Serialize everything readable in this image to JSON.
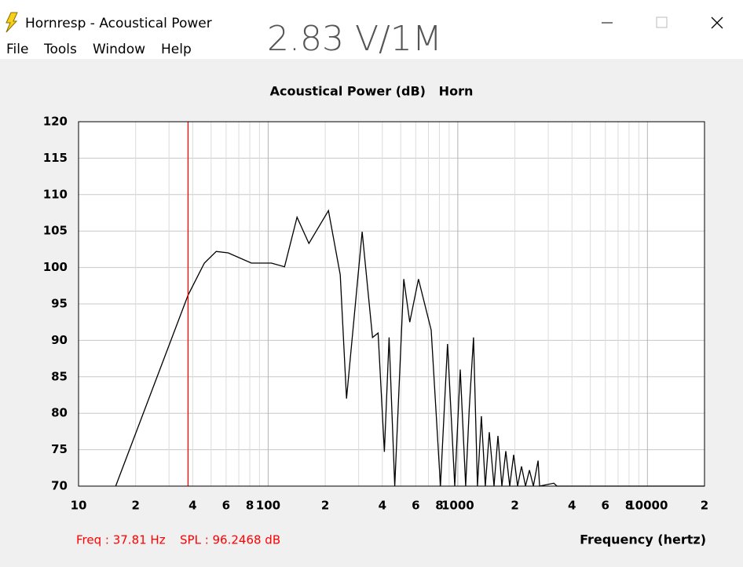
{
  "window": {
    "title": "Hornresp - Acoustical Power",
    "menu": [
      "File",
      "Tools",
      "Window",
      "Help"
    ]
  },
  "annotation": "2.83 V/1M",
  "chart_data": {
    "type": "line",
    "title": "Acoustical Power (dB)   Horn",
    "x_label": "Frequency (hertz)",
    "xscale": "log",
    "xlim": [
      10,
      20000
    ],
    "ylim": [
      70,
      120
    ],
    "xticks": [
      10,
      {
        "value": 20,
        "label": "2"
      },
      {
        "value": 40,
        "label": "4"
      },
      {
        "value": 60,
        "label": "6"
      },
      {
        "value": 80,
        "label": "8"
      },
      100,
      {
        "value": 200,
        "label": "2"
      },
      {
        "value": 400,
        "label": "4"
      },
      {
        "value": 600,
        "label": "6"
      },
      {
        "value": 800,
        "label": "8"
      },
      1000,
      {
        "value": 2000,
        "label": "2"
      },
      {
        "value": 4000,
        "label": "4"
      },
      {
        "value": 6000,
        "label": "6"
      },
      {
        "value": 8000,
        "label": "8"
      },
      10000,
      {
        "value": 20000,
        "label": "2"
      }
    ],
    "xminorticks": [
      30,
      50,
      70,
      90,
      300,
      500,
      700,
      900,
      3000,
      5000,
      7000,
      9000
    ],
    "yticks": [
      70,
      75,
      80,
      85,
      90,
      95,
      100,
      105,
      110,
      115,
      120
    ],
    "grid": true,
    "x": [
      15.7,
      37.8,
      46.1,
      53.2,
      61.5,
      81.6,
      104,
      122,
      142,
      164,
      208,
      240,
      259,
      313,
      355,
      380,
      410,
      434,
      465,
      519,
      558,
      620,
      724,
      810,
      883,
      964,
      1030,
      1100,
      1150,
      1210,
      1270,
      1332,
      1397,
      1466,
      1552,
      1628,
      1708,
      1791,
      1878,
      1970,
      2067,
      2168,
      2275,
      2386,
      2503,
      2650,
      2700,
      3208,
      3333,
      20000
    ],
    "series": [
      {
        "color": "#000000",
        "values": [
          70,
          96.2,
          100.6,
          102.2,
          102,
          100.6,
          100.6,
          100.1,
          106.9,
          103.3,
          107.8,
          99,
          82,
          104.9,
          90.4,
          91,
          74.7,
          90.4,
          70,
          98.4,
          92.5,
          98.4,
          91.4,
          70,
          89.5,
          70,
          86,
          70,
          80.7,
          90.4,
          70,
          79.6,
          70,
          77.4,
          70,
          76.9,
          70,
          74.8,
          70,
          74.3,
          70,
          72.7,
          70,
          72.2,
          70,
          73.5,
          70,
          70.4,
          70,
          70
        ]
      }
    ],
    "cursor": {
      "x": 37.81,
      "color": "#ff0000",
      "freq_label": "Freq : 37.81 Hz",
      "spl_label": "SPL : 96.2468 dB"
    }
  }
}
